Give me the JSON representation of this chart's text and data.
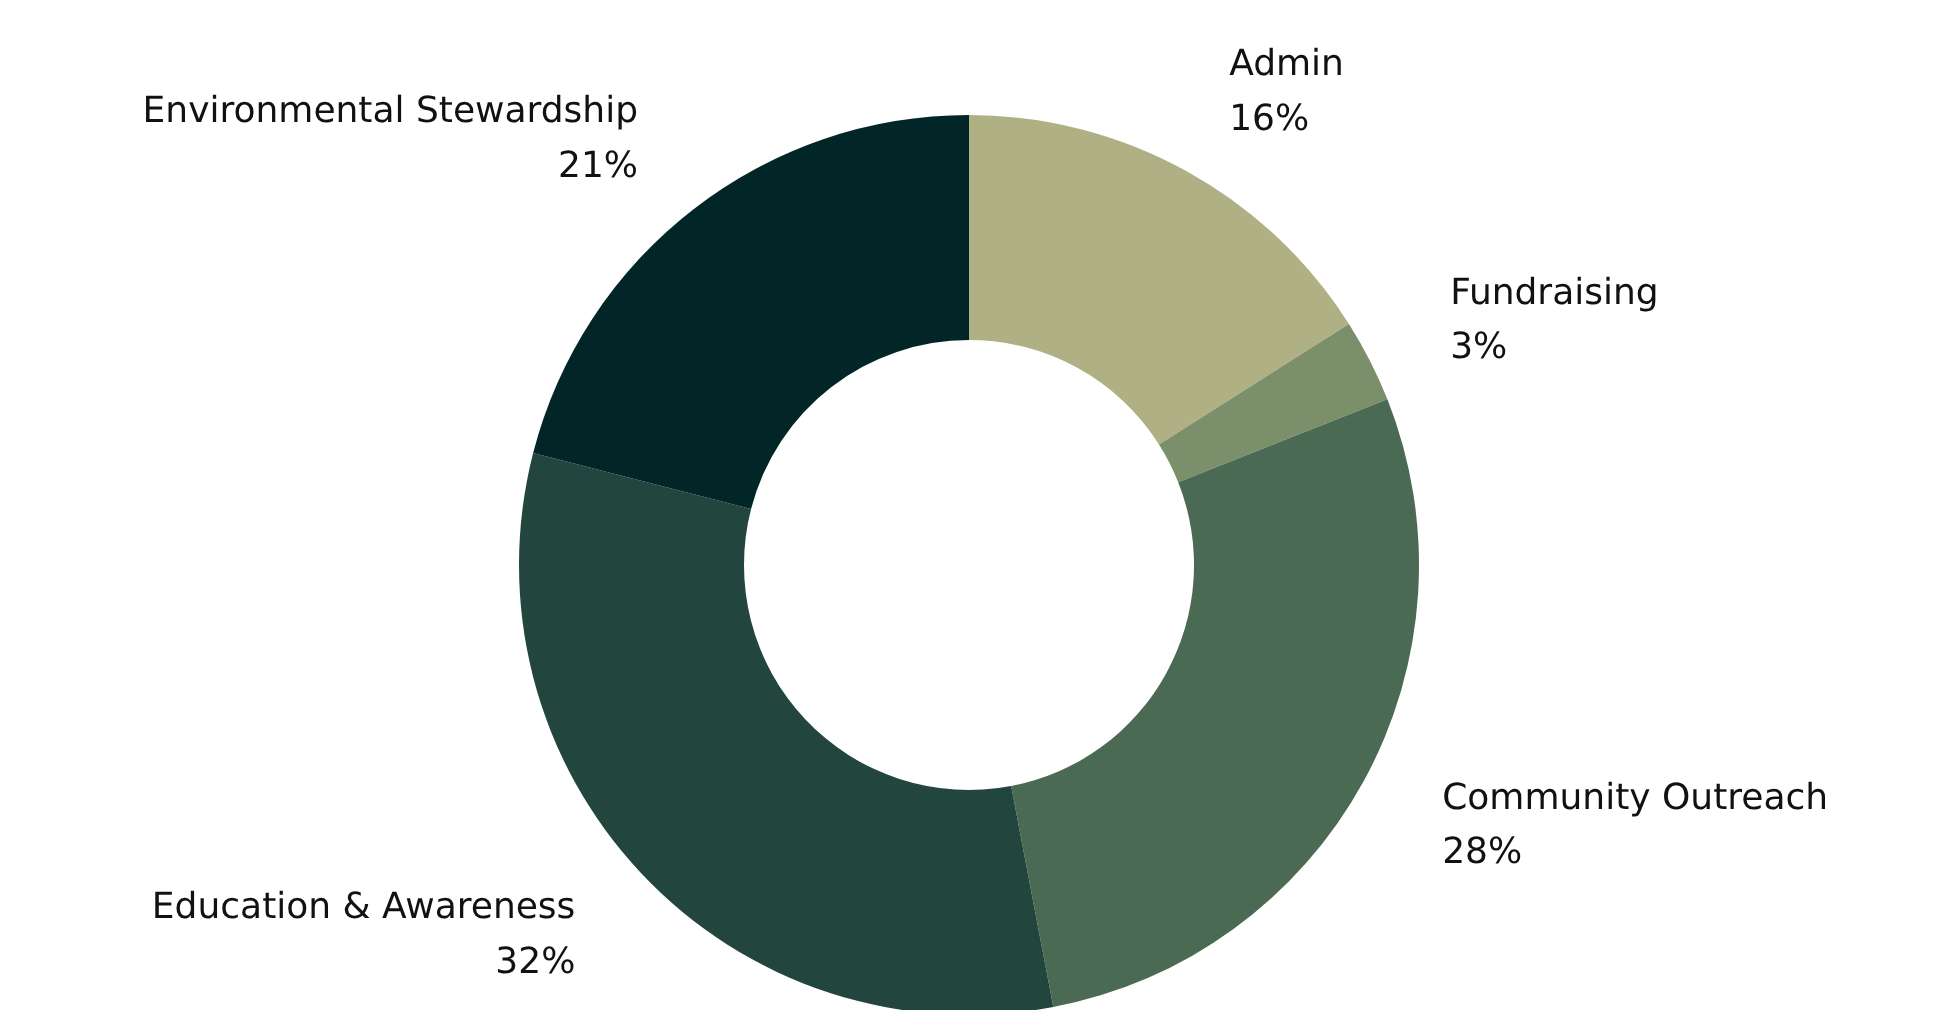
{
  "chart_data": {
    "type": "donut",
    "categories": [
      "Admin",
      "Fundraising",
      "Community Outreach",
      "Education & Awareness",
      "Environmental Stewardship"
    ],
    "values": [
      16,
      3,
      28,
      32,
      21
    ],
    "value_labels": [
      "16%",
      "3%",
      "28%",
      "32%",
      "21%"
    ],
    "colors": [
      "#afb083",
      "#7a8f6a",
      "#4b6a53",
      "#22463e",
      "#022628"
    ]
  }
}
